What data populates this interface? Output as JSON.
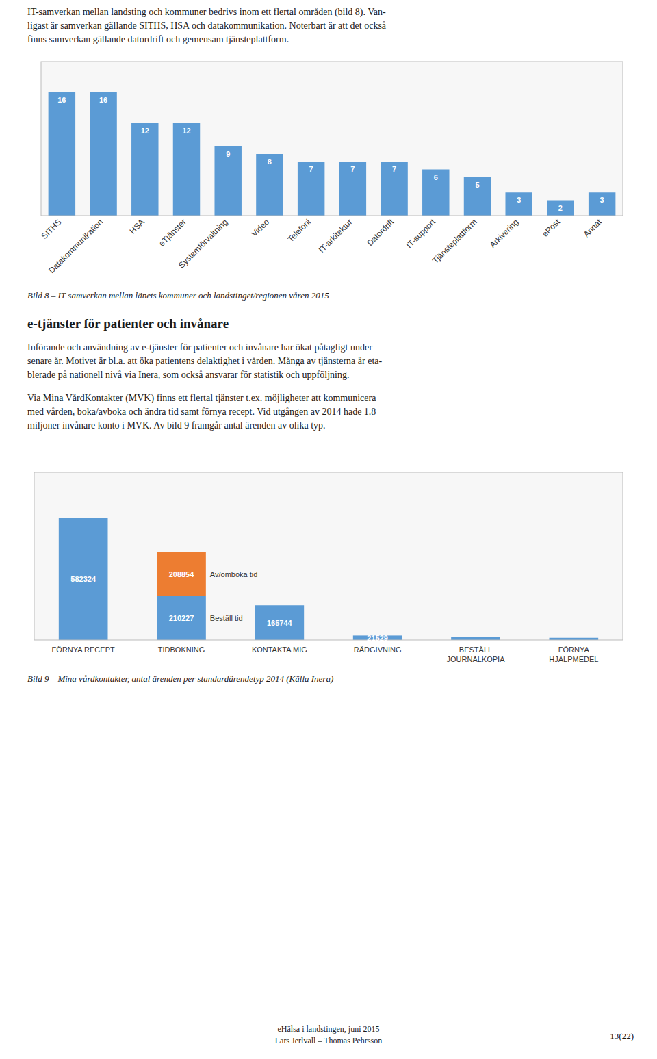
{
  "intro": [
    "IT-samverkan mellan landsting och kommuner bedrivs inom ett flertal områden (bild 8). Van-",
    "ligast är samverkan gällande SITHS, HSA och datakommunikation. Noterbart är att det också",
    "finns samverkan gällande datordrift och gemensam tjänsteplattform."
  ],
  "section_title": "e-tjänster för patienter och invånare",
  "paragraphs": [
    [
      "Införande och användning av e-tjänster för patienter och invånare har ökat påtagligt under",
      "senare år. Motivet är bl.a. att öka patientens delaktighet i vården. Många av tjänsterna är eta-",
      "blerade på nationell nivå via Inera, som också ansvarar för statistik och uppföljning."
    ],
    [
      "Via Mina VårdKontakter (MVK) finns ett flertal tjänster t.ex. möjligheter att kommunicera",
      "med vården, boka/avboka och ändra tid samt förnya recept. Vid utgången av 2014 hade 1.8",
      "miljoner invånare konto i MVK. Av bild 9 framgår antal ärenden av olika typ."
    ]
  ],
  "footer": [
    "eHälsa i landstingen, juni 2015",
    "Lars Jerlvall – Thomas Pehrsson"
  ],
  "page_number": "13(22)",
  "chart_data": [
    {
      "type": "bar",
      "title": "Bild 8 – IT-samverkan mellan länets kommuner och landstinget/regionen våren 2015",
      "categories": [
        "SITHS",
        "Datakommunikation",
        "HSA",
        "eTjänster",
        "Systemförvaltning",
        "Video",
        "Telefoni",
        "IT-arkitektur",
        "Datordrift",
        "IT-support",
        "Tjänsteplattform",
        "Arkivering",
        "ePost",
        "Annat"
      ],
      "values": [
        16,
        16,
        12,
        12,
        9,
        8,
        7,
        7,
        7,
        6,
        5,
        3,
        2,
        3
      ],
      "color": "#5B9BD5",
      "ylim": [
        0,
        20
      ],
      "grid": false,
      "tick_labels": "x",
      "data_labels": true
    },
    {
      "type": "bar",
      "title": "Bild 9 – Mina vårdkontakter, antal ärenden per standardärendetyp 2014 (Källa Inera)",
      "categories": [
        "FÖRNYA RECEPT",
        "TIDBOKNING",
        "KONTAKTA MIG",
        "RÅDGIVNING",
        "BESTÄLL JOURNALKOPIA",
        "FÖRNYA HJÄLPMEDEL"
      ],
      "series": [
        {
          "name": "Beställ tid",
          "color": "#5B9BD5",
          "values": [
            582324,
            210227,
            165744,
            21529,
            13668,
            10616
          ],
          "value_labels": [
            "582324",
            "210227",
            "165744",
            "21529",
            null,
            null
          ]
        },
        {
          "name": "Av/omboka tid",
          "color": "#ED7D31",
          "values": [
            0,
            208854,
            0,
            0,
            0,
            0
          ],
          "value_labels": [
            null,
            "208854",
            null,
            null,
            null,
            null
          ]
        }
      ],
      "stacked": true,
      "ylim": [
        0,
        800000
      ],
      "grid": false,
      "tick_labels": "x",
      "data_labels": true
    }
  ]
}
